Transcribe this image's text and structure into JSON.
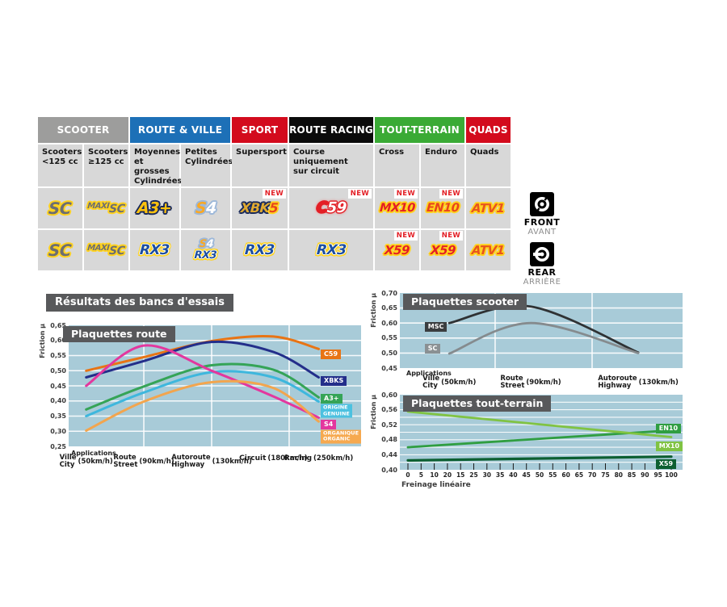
{
  "table": {
    "categories": [
      {
        "label": "SCOOTER",
        "color": "#9d9d9c",
        "span": 2
      },
      {
        "label": "ROUTE & VILLE",
        "color": "#1d70b7",
        "span": 2
      },
      {
        "label": "SPORT",
        "color": "#d30b1d",
        "span": 1
      },
      {
        "label": "ROUTE RACING",
        "color": "#0b0b0b",
        "span": 1
      },
      {
        "label": "TOUT-TERRAIN",
        "color": "#3aaa35",
        "span": 2
      },
      {
        "label": "QUADS",
        "color": "#d30b1d",
        "span": 1
      }
    ],
    "columns": [
      "Scooters\n<125 cc",
      "Scooters\n≥125 cc",
      "Moyennes\net grosses\nCylindrées",
      "Petites\nCylindrées",
      "Supersport",
      "Course\nuniquement\nsur circuit",
      "Cross",
      "Enduro",
      "Quads"
    ],
    "new_label": "NEW",
    "front_row": [
      {
        "name": "SC",
        "parts": [
          {
            "text": "SC",
            "color": "#6d6e71",
            "outline": "yellow"
          }
        ]
      },
      {
        "name": "MAXI SC",
        "type": "maxi",
        "parts": [
          {
            "text": "MAXI",
            "color": "#6d6e71",
            "outline": "yellow"
          },
          {
            "text": "SC",
            "color": "#6d6e71",
            "outline": "yellow"
          }
        ]
      },
      {
        "name": "A3+",
        "parts": [
          {
            "text": "A3+",
            "color": "#ffc20e",
            "outline": "navy"
          }
        ]
      },
      {
        "name": "S4",
        "parts": [
          {
            "text": "S",
            "color": "#f9a825",
            "outline": "steel"
          },
          {
            "text": "4",
            "color": "#ffffff",
            "outline": "steel"
          }
        ]
      },
      {
        "name": "XBK5",
        "new": true,
        "parts": [
          {
            "text": "XBK",
            "color": "#e0a92f",
            "outline": "navy"
          },
          {
            "text": "5",
            "color": "#e8441d",
            "outline": "yellow"
          }
        ]
      },
      {
        "name": "C59",
        "new": true,
        "parts": [
          {
            "text": "C",
            "color": "#e31f26",
            "outline": "redglow"
          },
          {
            "text": "59",
            "color": "#ffffff",
            "outline": "redglow"
          }
        ]
      },
      {
        "name": "MX10",
        "new": true,
        "parts": [
          {
            "text": "MX10",
            "color": "#e31f26",
            "outline": "yellow"
          }
        ]
      },
      {
        "name": "EN10",
        "new": true,
        "parts": [
          {
            "text": "EN10",
            "color": "#e8441d",
            "outline": "yellow"
          }
        ]
      },
      {
        "name": "ATV1",
        "parts": [
          {
            "text": "ATV1",
            "color": "#e8541d",
            "outline": "yellow"
          }
        ]
      }
    ],
    "rear_row": [
      {
        "name": "SC",
        "parts": [
          {
            "text": "SC",
            "color": "#6d6e71",
            "outline": "yellow"
          }
        ]
      },
      {
        "name": "MAXI SC",
        "type": "maxi",
        "parts": [
          {
            "text": "MAXI",
            "color": "#6d6e71",
            "outline": "yellow"
          },
          {
            "text": "SC",
            "color": "#6d6e71",
            "outline": "yellow"
          }
        ]
      },
      {
        "name": "RX3",
        "parts": [
          {
            "text": "RX3",
            "color": "#1d4ea0",
            "outline": "yellowwhite"
          }
        ]
      },
      {
        "name": "S4 / RX3",
        "type": "stack",
        "rows": [
          [
            {
              "text": "S",
              "color": "#f9a825",
              "outline": "steel"
            },
            {
              "text": "4",
              "color": "#ffffff",
              "outline": "steel"
            }
          ],
          [
            {
              "text": "RX3",
              "color": "#1d4ea0",
              "outline": "yellowwhite"
            }
          ]
        ]
      },
      {
        "name": "RX3",
        "parts": [
          {
            "text": "RX3",
            "color": "#1d4ea0",
            "outline": "yellowwhite"
          }
        ]
      },
      {
        "name": "RX3",
        "parts": [
          {
            "text": "RX3",
            "color": "#1d4ea0",
            "outline": "yellowwhite"
          }
        ]
      },
      {
        "name": "X59",
        "new": true,
        "parts": [
          {
            "text": "X59",
            "color": "#e31f26",
            "outline": "yellow"
          }
        ]
      },
      {
        "name": "X59",
        "new": true,
        "parts": [
          {
            "text": "X59",
            "color": "#e31f26",
            "outline": "yellow"
          }
        ]
      },
      {
        "name": "ATV1",
        "parts": [
          {
            "text": "ATV1",
            "color": "#e8541d",
            "outline": "yellow"
          }
        ]
      }
    ],
    "side": {
      "front": {
        "label": "FRONT",
        "sub": "AVANT"
      },
      "rear": {
        "label": "REAR",
        "sub": "ARRIÈRE"
      }
    }
  },
  "results": {
    "title": "Résultats des bancs d'essais"
  },
  "chart_data": [
    {
      "id": "route",
      "type": "line",
      "title": "Plaquettes route",
      "ylabel": "Friction µ",
      "x_header": "Applications",
      "ylim": [
        0.25,
        0.65
      ],
      "grid": true,
      "ytick_labels": [
        "0,65",
        "0,60",
        "0,55",
        "0,50",
        "0,45",
        "0,40",
        "0,35",
        "0,30",
        "0,25"
      ],
      "grid_step": 0.05,
      "grid_x": [
        0.257,
        0.489,
        0.754
      ],
      "categories": [
        {
          "main": "Ville",
          "alt": "City",
          "speed": "(50km/h)"
        },
        {
          "main": "Route",
          "alt": "Street",
          "speed": "(90km/h)"
        },
        {
          "main": "Autoroute",
          "alt": "Highway",
          "speed": "(130km/h)"
        },
        {
          "main": "Circuit",
          "alt": "",
          "speed": "(180km/h)"
        },
        {
          "main": "Racing",
          "alt": "",
          "speed": "(250km/h)"
        }
      ],
      "cat_x": [
        0.06,
        0.257,
        0.489,
        0.7,
        0.855
      ],
      "smooth": true,
      "series": [
        {
          "name": "C59",
          "color": "#e87414",
          "values": [
            0.5,
            0.545,
            0.598,
            0.613,
            0.572
          ],
          "chip": {
            "lines": [
              "C59"
            ],
            "y": 0.554,
            "x": 0.862
          }
        },
        {
          "name": "XBKS",
          "color": "#232e8a",
          "values": [
            0.478,
            0.532,
            0.595,
            0.562,
            0.478
          ],
          "chip": {
            "lines": [
              "XBKS"
            ],
            "y": 0.466,
            "x": 0.862
          }
        },
        {
          "name": "A3+",
          "color": "#35a457",
          "values": [
            0.372,
            0.448,
            0.518,
            0.503,
            0.412
          ],
          "chip": {
            "lines": [
              "A3+"
            ],
            "y": 0.407,
            "x": 0.862
          }
        },
        {
          "name": "ORIGINE / GENUINE",
          "color": "#3eb7dd",
          "values": [
            0.35,
            0.428,
            0.495,
            0.478,
            0.398
          ],
          "chip": {
            "lines": [
              "ORIGINE",
              "GENUINE"
            ],
            "y": 0.367,
            "x": 0.862,
            "bg": "#4cc1e0"
          }
        },
        {
          "name": "S4",
          "color": "#e3379e",
          "values": [
            0.45,
            0.583,
            0.5,
            0.415,
            0.345
          ],
          "chip": {
            "lines": [
              "S4"
            ],
            "y": 0.322,
            "x": 0.862
          }
        },
        {
          "name": "ORGANIQUE / ORGANIC",
          "color": "#f2a54e",
          "values": [
            0.302,
            0.398,
            0.462,
            0.443,
            0.332
          ],
          "chip": {
            "lines": [
              "ORGANIQUE",
              "ORGANIC"
            ],
            "y": 0.282,
            "x": 0.862,
            "bg": "#f6a94f"
          }
        }
      ]
    },
    {
      "id": "scooter",
      "type": "line",
      "title": "Plaquettes scooter",
      "ylabel": "Friction µ",
      "x_header": "Applications",
      "ylim": [
        0.45,
        0.7
      ],
      "grid": true,
      "ytick_labels": [
        "0,70",
        "0,65",
        "0,60",
        "0,55",
        "0,50",
        "0,45"
      ],
      "grid_step": 0.05,
      "grid_x": [
        0.337,
        0.68
      ],
      "categories": [
        {
          "main": "Ville",
          "alt": "City",
          "speed": "(50km/h)"
        },
        {
          "main": "Route",
          "alt": "Street",
          "speed": "(90km/h)"
        },
        {
          "main": "Autoroute",
          "alt": "Highway",
          "speed": "(130km/h)"
        }
      ],
      "cat_x": [
        0.175,
        0.463,
        0.843
      ],
      "smooth": true,
      "series": [
        {
          "name": "MSC",
          "color": "#2f3234",
          "values": [
            0.6,
            0.655,
            0.502
          ],
          "chip": {
            "lines": [
              "MSC"
            ],
            "y": 0.588,
            "x": 0.088,
            "bg": "#3a3d3f"
          }
        },
        {
          "name": "SC",
          "color": "#858b8e",
          "values": [
            0.498,
            0.6,
            0.5
          ],
          "chip": {
            "lines": [
              "SC"
            ],
            "y": 0.515,
            "x": 0.088,
            "bg": "#8a9093"
          }
        }
      ]
    },
    {
      "id": "terrain",
      "type": "line",
      "title": "Plaquettes tout-terrain",
      "ylabel": "Friction µ",
      "xlabel": "Freinage linéaire",
      "ylim": [
        0.4,
        0.6
      ],
      "xlim": [
        0,
        100
      ],
      "grid": true,
      "ytick_labels": [
        "0,60",
        "0,56",
        "0,52",
        "0,48",
        "0,44",
        "0,40"
      ],
      "grid_step": 0.02,
      "xtick_labels": [
        "0",
        "5",
        "10",
        "20",
        "15",
        "25",
        "30",
        "35",
        "40",
        "45",
        "50",
        "55",
        "60",
        "65",
        "70",
        "75",
        "80",
        "85",
        "90",
        "95",
        "100"
      ],
      "smooth": false,
      "series": [
        {
          "name": "EN10",
          "color": "#2f9e41",
          "values": [
            0.46,
            0.505
          ],
          "x": [
            0.0286,
            0.96
          ],
          "chip": {
            "lines": [
              "EN10"
            ],
            "y": 0.51,
            "x": 0.905
          }
        },
        {
          "name": "MX10",
          "color": "#80c343",
          "values": [
            0.555,
            0.487
          ],
          "x": [
            0.0286,
            0.96
          ],
          "chip": {
            "lines": [
              "MX10"
            ],
            "y": 0.462,
            "x": 0.905
          }
        },
        {
          "name": "X59",
          "color": "#0c5f31",
          "width": 3.2,
          "values": [
            0.425,
            0.435
          ],
          "x": [
            0.0286,
            0.96
          ],
          "chip": {
            "lines": [
              "X59"
            ],
            "y": 0.415,
            "x": 0.905,
            "bg": "#0c5f31"
          }
        }
      ]
    }
  ]
}
